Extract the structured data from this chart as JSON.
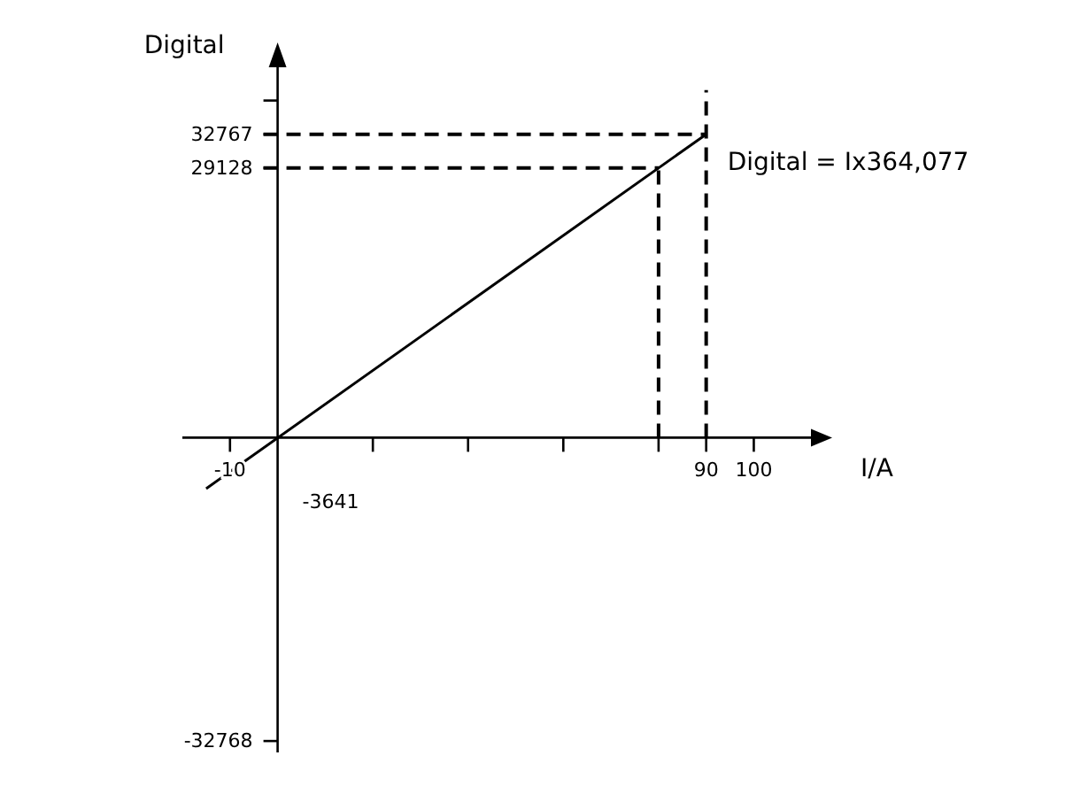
{
  "chart_data": {
    "type": "line",
    "xlabel": "I/A",
    "ylabel": "Digital",
    "xlim": [
      -20,
      112
    ],
    "ylim": [
      -34000,
      40000
    ],
    "xticks": [
      {
        "value": -10,
        "label": "-10"
      },
      {
        "value": 20,
        "label": null
      },
      {
        "value": 40,
        "label": null
      },
      {
        "value": 60,
        "label": null
      },
      {
        "value": 80,
        "label": null
      },
      {
        "value": 90,
        "label": "90"
      },
      {
        "value": 100,
        "label": "100"
      }
    ],
    "yticks": [
      {
        "value": -32768,
        "label": "-32768"
      },
      {
        "value": 29128,
        "label": "29128"
      },
      {
        "value": 32767,
        "label": "32767"
      },
      {
        "value": 36408,
        "label": null
      }
    ],
    "series": [
      {
        "color": "#000000",
        "x": [
          -15,
          90
        ],
        "values": [
          -5500,
          32767
        ]
      }
    ],
    "ref_lines": [
      {
        "axis": "x",
        "value": 80,
        "line_style": "dashed"
      },
      {
        "axis": "x",
        "value": 90,
        "line_style": "dashed"
      },
      {
        "axis": "y",
        "value": 29128,
        "line_style": "dashed"
      },
      {
        "axis": "y",
        "value": 32767,
        "line_style": "dashed"
      }
    ],
    "annotations": [
      "Digital = Ix364,077",
      "-3641"
    ],
    "line_style": "solid",
    "marker": "none"
  }
}
